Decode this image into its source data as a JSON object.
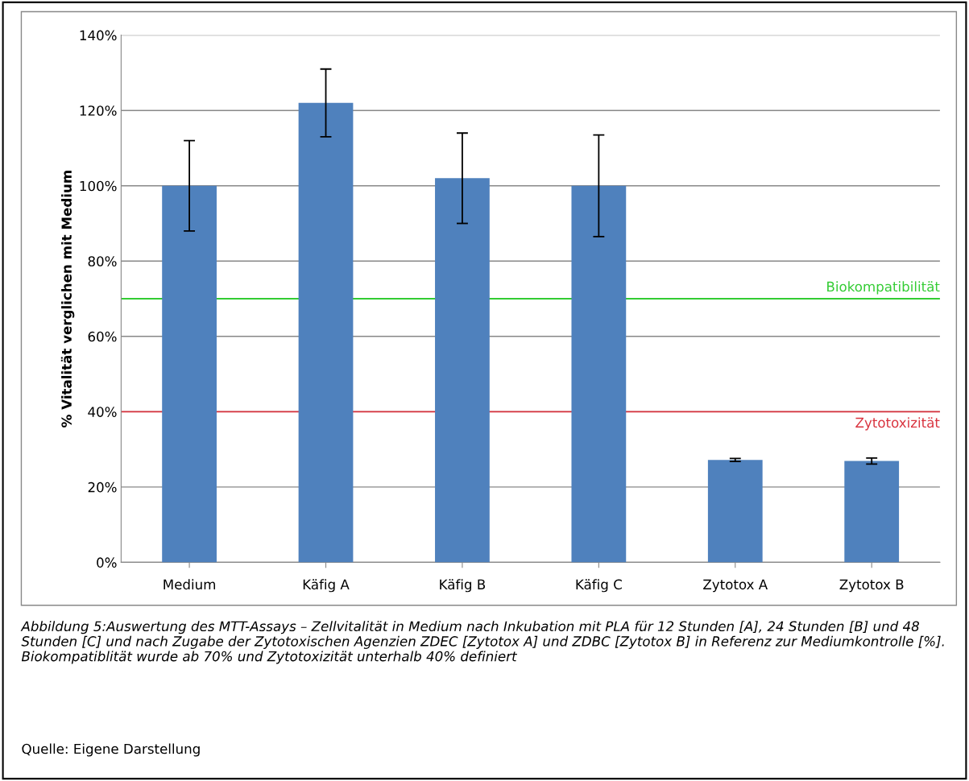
{
  "chart_data": {
    "type": "bar",
    "ylabel": "% Vitalität verglichen mit Medium",
    "categories": [
      "Medium",
      "Käfig A",
      "Käfig B",
      "Käfig C",
      "Zytotox A",
      "Zytotox B"
    ],
    "values": [
      100,
      122,
      102,
      100,
      27.2,
      26.9
    ],
    "errors": [
      12,
      9,
      12,
      13.5,
      0.4,
      0.8
    ],
    "color": "#4f81bd",
    "ylim": [
      0,
      140
    ],
    "yticks": [
      {
        "value": 0,
        "label": "0%"
      },
      {
        "value": 20,
        "label": "20%"
      },
      {
        "value": 40,
        "label": "40%"
      },
      {
        "value": 60,
        "label": "60%"
      },
      {
        "value": 80,
        "label": "80%"
      },
      {
        "value": 100,
        "label": "100%"
      },
      {
        "value": 120,
        "label": "120%"
      },
      {
        "value": 140,
        "label": "140%"
      }
    ],
    "grid": "y",
    "ref_lines": [
      {
        "axis": "y",
        "value": 70,
        "label": "Biokompatibilität",
        "color": "#33cc33"
      },
      {
        "axis": "y",
        "value": 40,
        "label": "Zytotoxizität",
        "color": "#d9343f"
      }
    ],
    "annotations": [
      "Abbildung 5:Auswertung des MTT-Assays – Zellvitalität in Medium nach Inkubation mit PLA für 12 Stunden [A], 24 Stunden [B] und 48 Stunden [C] und nach Zugabe der Zytotoxischen Agenzien ZDEC [Zytotox A] und ZDBC [Zytotox B] in Referenz zur Mediumkontrolle [%]. Biokompatiblität wurde ab 70% und Zytotoxizität unterhalb 40% definiert",
      "Quelle: Eigene Darstellung"
    ]
  }
}
